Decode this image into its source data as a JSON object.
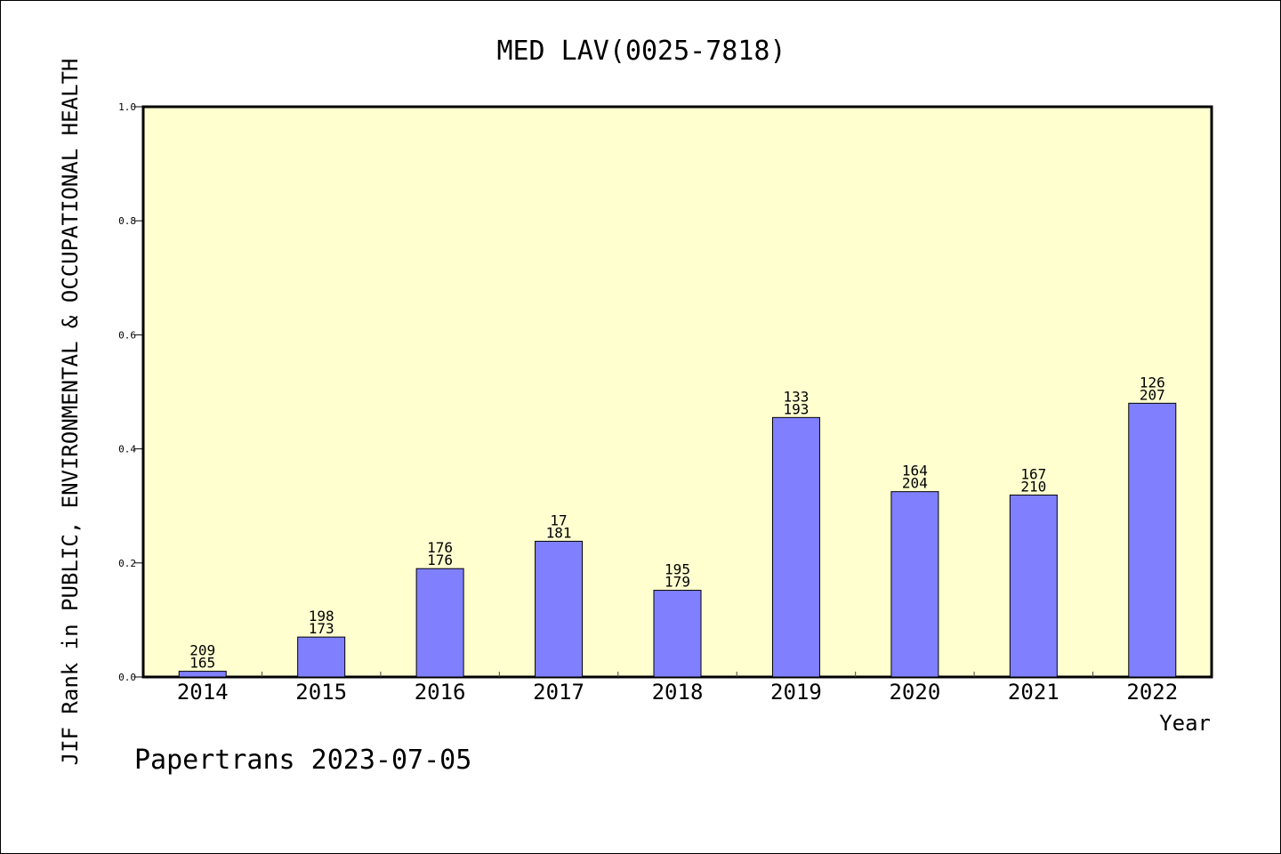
{
  "chart_data": {
    "type": "bar",
    "title": "MED LAV(0025-7818)",
    "xlabel": "Year",
    "ylabel": "JIF Rank in PUBLIC, ENVIRONMENTAL & OCCUPATIONAL HEALTH",
    "ylim": [
      0,
      1.0
    ],
    "yticks": [
      "0.0",
      "0.2",
      "0.4",
      "0.6",
      "0.8",
      "1.0"
    ],
    "grid": false,
    "categories": [
      "2014",
      "2015",
      "2016",
      "2017",
      "2018",
      "2019",
      "2020",
      "2021",
      "2022"
    ],
    "values": [
      0.01,
      0.07,
      0.19,
      0.238,
      0.152,
      0.455,
      0.325,
      0.319,
      0.48
    ],
    "labels": [
      [
        "209",
        "165"
      ],
      [
        "198",
        "173"
      ],
      [
        "176",
        "176"
      ],
      [
        "17",
        "181"
      ],
      [
        "195",
        "179"
      ],
      [
        "133",
        "193"
      ],
      [
        "164",
        "204"
      ],
      [
        "167",
        "210"
      ],
      [
        "126",
        "207"
      ]
    ],
    "colors": {
      "plot_background": "#ffffd0",
      "bar": "#8080ff",
      "axis": "#000000"
    }
  },
  "footer": {
    "text": "Papertrans 2023-07-05"
  }
}
